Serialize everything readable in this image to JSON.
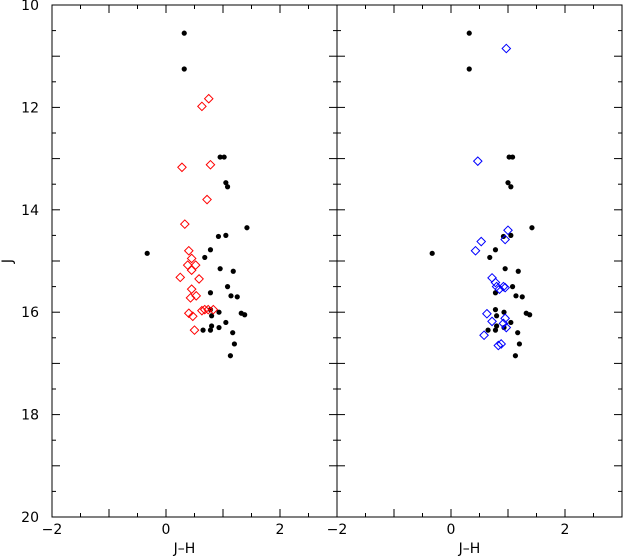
{
  "chart_data": [
    {
      "type": "scatter",
      "panel": "left",
      "xlabel": "J–H",
      "ylabel": "J",
      "xlim": [
        -2,
        3
      ],
      "ylim": [
        20,
        10
      ],
      "y_inverted": true,
      "x_ticks": [
        "−2",
        "0",
        "2"
      ],
      "y_ticks": [
        "10",
        "12",
        "14",
        "16",
        "18",
        "20"
      ],
      "grid": false,
      "series": [
        {
          "color": "#000000",
          "marker": "filled-circle",
          "points": [
            [
              0.32,
              10.55
            ],
            [
              0.32,
              11.25
            ],
            [
              0.95,
              12.97
            ],
            [
              1.02,
              12.97
            ],
            [
              1.05,
              13.47
            ],
            [
              1.08,
              13.55
            ],
            [
              1.42,
              14.35
            ],
            [
              1.05,
              14.5
            ],
            [
              0.92,
              14.52
            ],
            [
              -0.33,
              14.85
            ],
            [
              0.78,
              14.78
            ],
            [
              0.68,
              14.93
            ],
            [
              1.18,
              15.2
            ],
            [
              0.95,
              15.15
            ],
            [
              1.08,
              15.5
            ],
            [
              1.25,
              15.7
            ],
            [
              0.78,
              15.62
            ],
            [
              1.14,
              15.68
            ],
            [
              0.78,
              15.95
            ],
            [
              0.93,
              16.0
            ],
            [
              1.32,
              16.02
            ],
            [
              1.38,
              16.05
            ],
            [
              0.8,
              16.07
            ],
            [
              1.05,
              16.2
            ],
            [
              0.8,
              16.27
            ],
            [
              0.93,
              16.3
            ],
            [
              0.65,
              16.35
            ],
            [
              0.78,
              16.35
            ],
            [
              1.17,
              16.4
            ],
            [
              1.2,
              16.62
            ],
            [
              1.13,
              16.85
            ]
          ]
        },
        {
          "color": "#ff0000",
          "marker": "open-diamond",
          "points": [
            [
              0.75,
              11.83
            ],
            [
              0.63,
              11.98
            ],
            [
              0.28,
              13.17
            ],
            [
              0.78,
              13.12
            ],
            [
              0.72,
              13.8
            ],
            [
              0.33,
              14.28
            ],
            [
              0.4,
              14.8
            ],
            [
              0.45,
              14.95
            ],
            [
              0.38,
              15.08
            ],
            [
              0.52,
              15.08
            ],
            [
              0.45,
              15.18
            ],
            [
              0.25,
              15.32
            ],
            [
              0.58,
              15.35
            ],
            [
              0.45,
              15.55
            ],
            [
              0.53,
              15.68
            ],
            [
              0.43,
              15.72
            ],
            [
              0.68,
              15.95
            ],
            [
              0.74,
              15.95
            ],
            [
              0.83,
              15.95
            ],
            [
              0.63,
              15.97
            ],
            [
              0.4,
              16.02
            ],
            [
              0.47,
              16.08
            ],
            [
              0.5,
              16.35
            ]
          ]
        }
      ]
    },
    {
      "type": "scatter",
      "panel": "right",
      "xlabel": "J–H",
      "ylabel": "",
      "xlim": [
        -2,
        3
      ],
      "ylim": [
        20,
        10
      ],
      "y_inverted": true,
      "x_ticks": [
        "−2",
        "0",
        "2"
      ],
      "y_ticks": [],
      "grid": false,
      "series": [
        {
          "color": "#000000",
          "marker": "filled-circle",
          "points": [
            [
              0.32,
              10.55
            ],
            [
              0.32,
              11.25
            ],
            [
              1.02,
              12.97
            ],
            [
              1.08,
              12.97
            ],
            [
              1.0,
              13.47
            ],
            [
              1.05,
              13.55
            ],
            [
              1.42,
              14.35
            ],
            [
              1.05,
              14.5
            ],
            [
              0.92,
              14.52
            ],
            [
              -0.33,
              14.85
            ],
            [
              0.78,
              14.78
            ],
            [
              0.68,
              14.93
            ],
            [
              1.18,
              15.2
            ],
            [
              0.95,
              15.15
            ],
            [
              1.08,
              15.5
            ],
            [
              1.25,
              15.7
            ],
            [
              0.78,
              15.62
            ],
            [
              1.14,
              15.68
            ],
            [
              0.78,
              15.95
            ],
            [
              0.93,
              16.0
            ],
            [
              1.32,
              16.02
            ],
            [
              1.38,
              16.05
            ],
            [
              0.8,
              16.07
            ],
            [
              1.05,
              16.2
            ],
            [
              0.8,
              16.27
            ],
            [
              0.93,
              16.3
            ],
            [
              0.65,
              16.35
            ],
            [
              0.78,
              16.35
            ],
            [
              1.17,
              16.4
            ],
            [
              1.2,
              16.62
            ],
            [
              1.13,
              16.85
            ]
          ]
        },
        {
          "color": "#0000ff",
          "marker": "open-diamond",
          "points": [
            [
              0.97,
              10.85
            ],
            [
              0.47,
              13.05
            ],
            [
              1.0,
              14.4
            ],
            [
              0.95,
              14.58
            ],
            [
              0.53,
              14.62
            ],
            [
              0.43,
              14.8
            ],
            [
              0.72,
              15.33
            ],
            [
              0.78,
              15.42
            ],
            [
              0.8,
              15.5
            ],
            [
              0.85,
              15.55
            ],
            [
              0.92,
              15.5
            ],
            [
              0.95,
              15.52
            ],
            [
              0.63,
              16.03
            ],
            [
              0.95,
              16.12
            ],
            [
              0.72,
              16.18
            ],
            [
              0.92,
              16.22
            ],
            [
              0.97,
              16.3
            ],
            [
              0.58,
              16.45
            ],
            [
              0.88,
              16.62
            ],
            [
              0.83,
              16.65
            ]
          ]
        }
      ]
    }
  ]
}
